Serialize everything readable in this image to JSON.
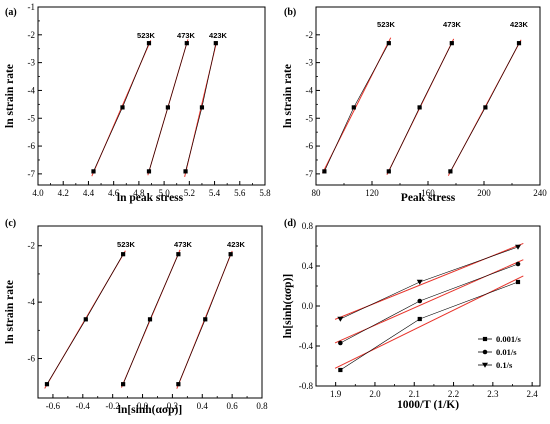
{
  "chart_data": [
    {
      "panel": "(a)",
      "type": "scatter",
      "xlabel": "ln peak stress",
      "ylabel": "ln strain rate",
      "xlim": [
        4.0,
        5.8
      ],
      "ylim": [
        -7.4,
        -1.0
      ],
      "xticks": [
        "4.0",
        "4.2",
        "4.4",
        "4.6",
        "4.8",
        "5.0",
        "5.2",
        "5.4",
        "5.6",
        "5.8"
      ],
      "yticks": [
        "-1",
        "-2",
        "-3",
        "-4",
        "-5",
        "-6",
        "-7"
      ],
      "grid": false,
      "series": [
        {
          "name": "523K",
          "x": [
            4.44,
            4.67,
            4.88
          ],
          "y": [
            -6.91,
            -4.61,
            -2.3
          ]
        },
        {
          "name": "473K",
          "x": [
            4.88,
            5.03,
            5.18
          ],
          "y": [
            -6.91,
            -4.61,
            -2.3
          ]
        },
        {
          "name": "423K",
          "x": [
            5.17,
            5.3,
            5.41
          ],
          "y": [
            -6.91,
            -4.61,
            -2.3
          ]
        }
      ]
    },
    {
      "panel": "(b)",
      "type": "scatter",
      "xlabel": "Peak stress",
      "ylabel": "ln strain rate",
      "xlim": [
        80,
        240
      ],
      "ylim": [
        -7.4,
        -1.0
      ],
      "xticks": [
        "80",
        "120",
        "160",
        "200",
        "240"
      ],
      "yticks": [
        "-2",
        "-3",
        "-4",
        "-5",
        "-6",
        "-7"
      ],
      "grid": false,
      "series": [
        {
          "name": "523K",
          "x": [
            86,
            107,
            132
          ],
          "y": [
            -6.91,
            -4.61,
            -2.3
          ]
        },
        {
          "name": "473K",
          "x": [
            132,
            154,
            177
          ],
          "y": [
            -6.91,
            -4.61,
            -2.3
          ]
        },
        {
          "name": "423K",
          "x": [
            176,
            201,
            225
          ],
          "y": [
            -6.91,
            -4.61,
            -2.3
          ]
        }
      ]
    },
    {
      "panel": "(c)",
      "type": "scatter",
      "xlabel": "ln[sinh(ασp)]",
      "ylabel": "ln strain rate",
      "xlim": [
        -0.7,
        0.8
      ],
      "ylim": [
        -7.4,
        -1.3
      ],
      "xticks": [
        "-0.6",
        "-0.4",
        "-0.2",
        "0.0",
        "0.2",
        "0.4",
        "0.6",
        "0.8"
      ],
      "yticks": [
        "-2",
        "-4",
        "-6"
      ],
      "grid": false,
      "series": [
        {
          "name": "523K",
          "x": [
            -0.64,
            -0.38,
            -0.13
          ],
          "y": [
            -6.91,
            -4.61,
            -2.3
          ]
        },
        {
          "name": "473K",
          "x": [
            -0.13,
            0.05,
            0.24
          ],
          "y": [
            -6.91,
            -4.61,
            -2.3
          ]
        },
        {
          "name": "423K",
          "x": [
            0.24,
            0.42,
            0.59
          ],
          "y": [
            -6.91,
            -4.61,
            -2.3
          ]
        }
      ]
    },
    {
      "panel": "(d)",
      "type": "scatter",
      "xlabel": "1000/T (1/K)",
      "ylabel": "ln[sinh(ασp)]",
      "xlim": [
        1.85,
        2.42
      ],
      "ylim": [
        -0.8,
        0.8
      ],
      "xticks": [
        "1.9",
        "2.0",
        "2.1",
        "2.2",
        "2.3",
        "2.4"
      ],
      "yticks": [
        "-0.8",
        "-0.4",
        "0.0",
        "0.4",
        "0.8"
      ],
      "grid": false,
      "legend_position": "bottom-right",
      "series": [
        {
          "name": "0.001/s",
          "marker": "square",
          "x": [
            1.912,
            2.114,
            2.364
          ],
          "y": [
            -0.64,
            -0.13,
            0.24
          ]
        },
        {
          "name": "0.01/s",
          "marker": "circle",
          "x": [
            1.912,
            2.114,
            2.364
          ],
          "y": [
            -0.37,
            0.05,
            0.42
          ]
        },
        {
          "name": "0.1/s",
          "marker": "triangle-down",
          "x": [
            1.912,
            2.114,
            2.364
          ],
          "y": [
            -0.13,
            0.24,
            0.59
          ]
        }
      ]
    }
  ],
  "colors": {
    "fit_line": "#e8332a",
    "connect_line": "#000000",
    "marker": "#000000"
  }
}
